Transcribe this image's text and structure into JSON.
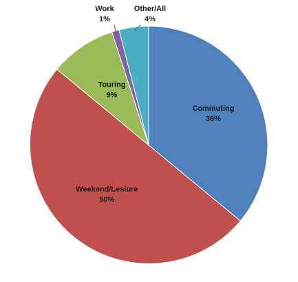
{
  "chart_data": {
    "type": "pie",
    "title": "",
    "slices": [
      {
        "label": "Commuting",
        "value": 36,
        "pct_label": "36%",
        "color": "#4F81BD"
      },
      {
        "label": "Weekend/Lesiure",
        "value": 50,
        "pct_label": "50%",
        "color": "#C0504D"
      },
      {
        "label": "Touring",
        "value": 9,
        "pct_label": "9%",
        "color": "#9BBB59"
      },
      {
        "label": "Work",
        "value": 1,
        "pct_label": "1%",
        "color": "#8064A2"
      },
      {
        "label": "Other/All",
        "value": 4,
        "pct_label": "4%",
        "color": "#4BACC6"
      }
    ],
    "legend": "none"
  }
}
